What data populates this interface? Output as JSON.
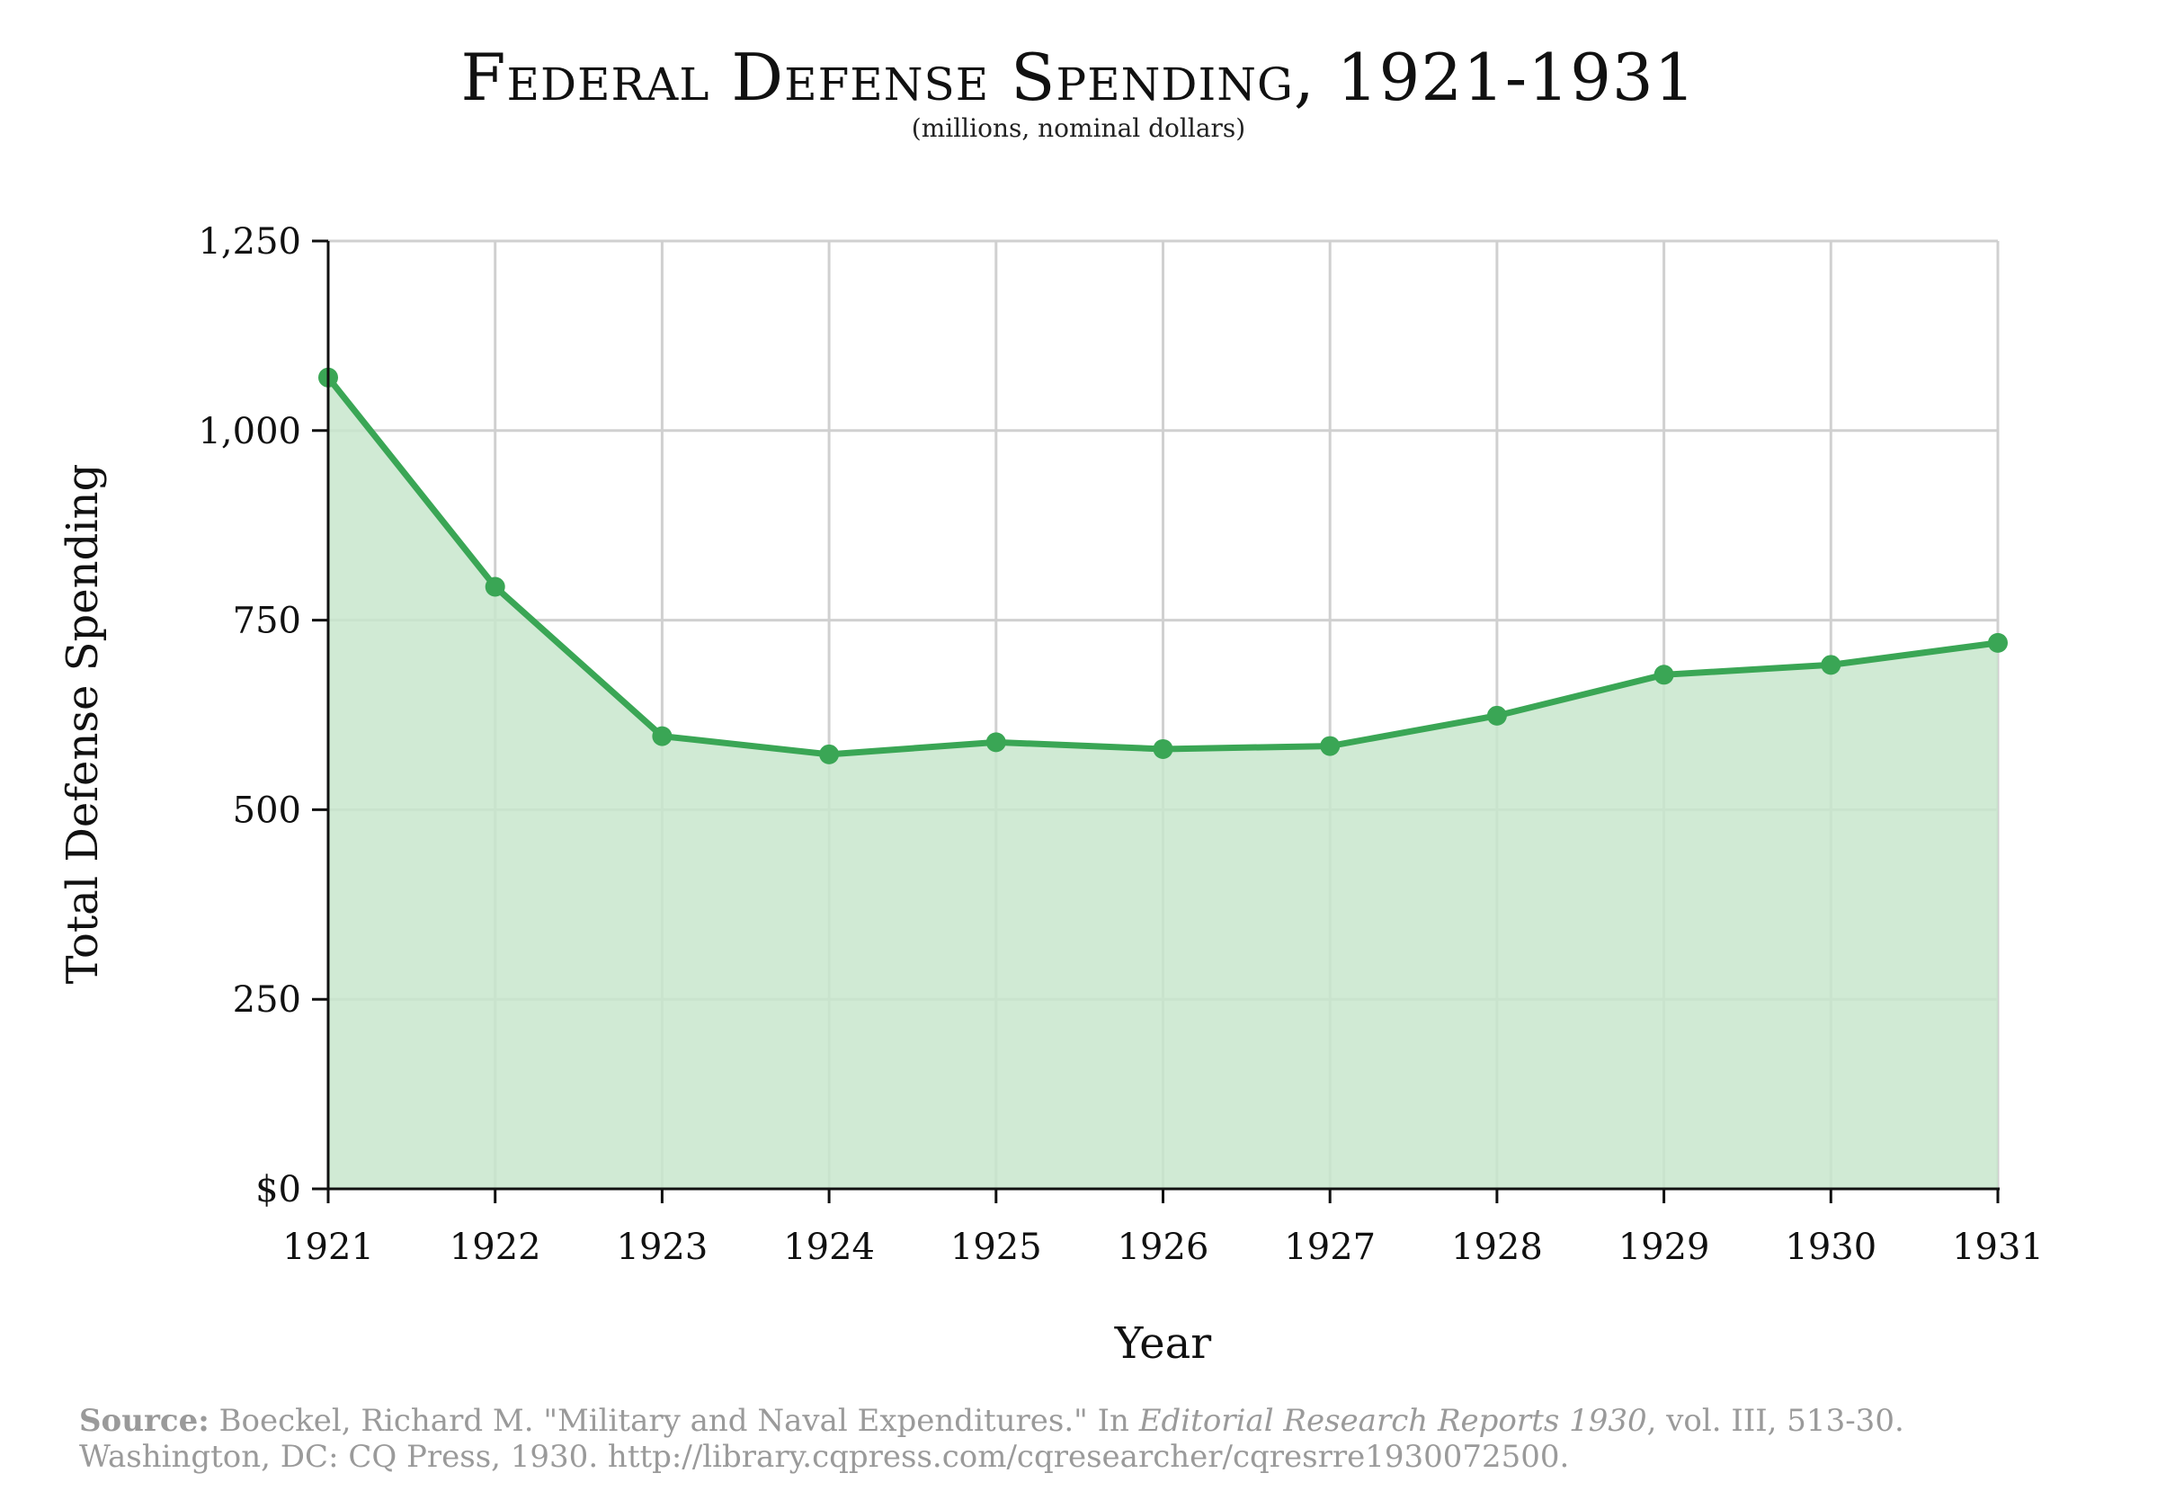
{
  "chart_data": {
    "type": "area",
    "title": "Federal Defense Spending, 1921-1931",
    "subtitle": "(millions, nominal dollars)",
    "xlabel": "Year",
    "ylabel": "Total Defense Spending",
    "categories": [
      "1921",
      "1922",
      "1923",
      "1924",
      "1925",
      "1926",
      "1927",
      "1928",
      "1929",
      "1930",
      "1931"
    ],
    "values": [
      1070,
      794,
      597,
      573,
      589,
      580,
      584,
      624,
      678,
      691,
      720
    ],
    "ylim": [
      0,
      1250
    ],
    "yticks": [
      0,
      250,
      500,
      750,
      1000,
      1250
    ],
    "ytick_labels": [
      "$0",
      "250",
      "500",
      "750",
      "1,000",
      "1,250"
    ],
    "grid": true,
    "colors": {
      "line": "#3aa655",
      "fill": "#c8e6cd",
      "grid": "#d0d0d0",
      "axis": "#111111"
    }
  },
  "source": {
    "label": "Source:",
    "text_before": " Boeckel, Richard M. \"Military and Naval Expenditures.\" In ",
    "italic": "Editorial Research Reports 1930",
    "text_after": ", vol. III, 513-30. Washington, DC: CQ Press, 1930. http://library.cqpress.com/cqresearcher/cqresrre1930072500."
  }
}
